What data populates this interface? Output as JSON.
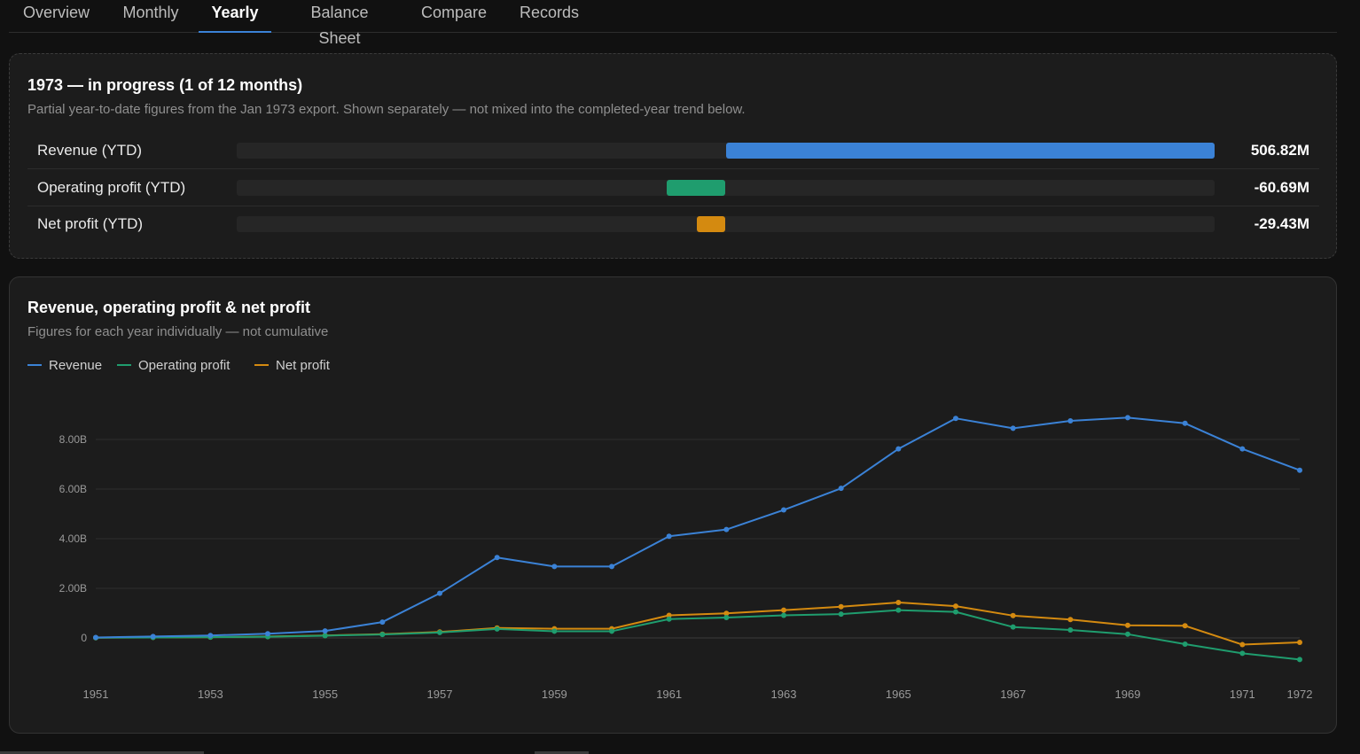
{
  "tabs": [
    {
      "label": "Overview",
      "active": false
    },
    {
      "label": "Monthly",
      "active": false
    },
    {
      "label": "Yearly",
      "active": true
    },
    {
      "label": "Balance Sheet",
      "active": false
    },
    {
      "label": "Compare",
      "active": false
    },
    {
      "label": "Records",
      "active": false
    }
  ],
  "ytd": {
    "title": "1973 — in progress (1 of 12 months)",
    "subtitle": "Partial year-to-date figures from the Jan 1973 export. Shown separately — not mixed into the completed-year trend below.",
    "rows": [
      {
        "label": "Revenue (YTD)",
        "value_text": "506.82M",
        "value": 506.82,
        "color": "#3b82d6"
      },
      {
        "label": "Operating profit (YTD)",
        "value_text": "-60.69M",
        "value": -60.69,
        "color": "#1f9d6e"
      },
      {
        "label": "Net profit (YTD)",
        "value_text": "-29.43M",
        "value": -29.43,
        "color": "#d48a10"
      }
    ]
  },
  "trend": {
    "title": "Revenue, operating profit & net profit",
    "subtitle": "Figures for each year individually — not cumulative"
  },
  "chart_data": {
    "type": "line",
    "x": [
      1951,
      1952,
      1953,
      1954,
      1955,
      1956,
      1957,
      1958,
      1959,
      1960,
      1961,
      1962,
      1963,
      1964,
      1965,
      1966,
      1967,
      1968,
      1969,
      1970,
      1971,
      1972
    ],
    "x_tick_labels": [
      "1951",
      "1953",
      "1955",
      "1957",
      "1959",
      "1961",
      "1963",
      "1965",
      "1967",
      "1969",
      "1971",
      "1972"
    ],
    "y_tick_labels": [
      "0",
      "2.00B",
      "4.00B",
      "6.00B",
      "8.00B"
    ],
    "y_ticks": [
      0,
      2,
      4,
      6,
      8
    ],
    "ylim": [
      -1.0,
      9.5
    ],
    "y_unit": "B",
    "grid": true,
    "legend_position": "top-left",
    "series": [
      {
        "name": "Revenue",
        "color": "#3b82d6",
        "values": [
          0.02,
          0.06,
          0.1,
          0.17,
          0.28,
          0.64,
          1.8,
          3.24,
          2.88,
          2.88,
          4.1,
          4.37,
          5.16,
          6.03,
          7.62,
          8.85,
          8.45,
          8.75,
          8.88,
          8.65,
          7.62,
          6.76
        ]
      },
      {
        "name": "Operating profit",
        "color": "#1f9d6e",
        "values": [
          0.01,
          0.02,
          0.03,
          0.05,
          0.09,
          0.14,
          0.22,
          0.36,
          0.27,
          0.27,
          0.76,
          0.82,
          0.91,
          0.96,
          1.12,
          1.05,
          0.44,
          0.32,
          0.15,
          -0.25,
          -0.62,
          -0.87
        ]
      },
      {
        "name": "Net profit",
        "color": "#d48a10",
        "values": [
          0.01,
          0.02,
          0.03,
          0.06,
          0.1,
          0.15,
          0.24,
          0.4,
          0.37,
          0.37,
          0.91,
          0.99,
          1.12,
          1.26,
          1.43,
          1.28,
          0.9,
          0.74,
          0.51,
          0.49,
          -0.27,
          -0.18
        ]
      }
    ]
  }
}
